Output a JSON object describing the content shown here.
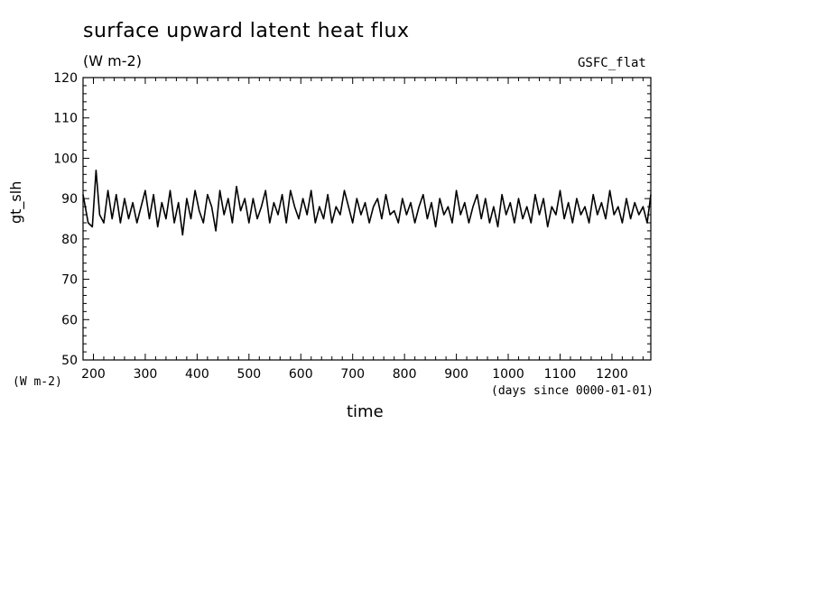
{
  "chart_data": {
    "type": "line",
    "title": "surface upward latent heat flux",
    "subtitle": "(W m-2)",
    "source_label": "GSFC_flat",
    "ylabel": "gt_slh",
    "yunit": "(W m-2)",
    "xlabel": "time",
    "xunit": "(days since 0000-01-01)",
    "xlim": [
      180,
      1275
    ],
    "ylim": [
      50,
      120
    ],
    "xticks": [
      200,
      300,
      400,
      500,
      600,
      700,
      800,
      900,
      1000,
      1100,
      1200
    ],
    "yticks": [
      50,
      60,
      70,
      80,
      90,
      100,
      110,
      120
    ],
    "grid": false,
    "line_color": "#000000",
    "series": [
      {
        "x": [
          180,
          190,
          198,
          205,
          212,
          220,
          228,
          236,
          244,
          252,
          260,
          268,
          276,
          284,
          292,
          300,
          308,
          316,
          324,
          332,
          340,
          348,
          356,
          364,
          372,
          380,
          388,
          396,
          404,
          412,
          420,
          428,
          436,
          444,
          452,
          460,
          468,
          476,
          484,
          492,
          500,
          508,
          516,
          524,
          532,
          540,
          548,
          556,
          564,
          572,
          580,
          588,
          596,
          604,
          612,
          620,
          628,
          636,
          644,
          652,
          660,
          668,
          676,
          684,
          692,
          700,
          708,
          716,
          724,
          732,
          740,
          748,
          756,
          764,
          772,
          780,
          788,
          796,
          804,
          812,
          820,
          828,
          836,
          844,
          852,
          860,
          868,
          876,
          884,
          892,
          900,
          908,
          916,
          924,
          932,
          940,
          948,
          956,
          964,
          972,
          980,
          988,
          996,
          1004,
          1012,
          1020,
          1028,
          1036,
          1044,
          1052,
          1060,
          1068,
          1076,
          1084,
          1092,
          1100,
          1108,
          1116,
          1124,
          1132,
          1140,
          1148,
          1156,
          1164,
          1172,
          1180,
          1188,
          1196,
          1204,
          1212,
          1220,
          1228,
          1236,
          1244,
          1252,
          1260,
          1268,
          1275
        ],
        "y": [
          91,
          84,
          83,
          97,
          86,
          84,
          92,
          85,
          91,
          84,
          90,
          85,
          89,
          84,
          88,
          92,
          85,
          91,
          83,
          89,
          85,
          92,
          84,
          89,
          81,
          90,
          85,
          92,
          87,
          84,
          91,
          88,
          82,
          92,
          86,
          90,
          84,
          93,
          87,
          90,
          84,
          90,
          85,
          88,
          92,
          84,
          89,
          86,
          91,
          84,
          92,
          88,
          85,
          90,
          86,
          92,
          84,
          88,
          85,
          91,
          84,
          88,
          86,
          92,
          88,
          84,
          90,
          86,
          89,
          84,
          88,
          90,
          85,
          91,
          86,
          87,
          84,
          90,
          86,
          89,
          84,
          88,
          91,
          85,
          89,
          83,
          90,
          86,
          88,
          84,
          92,
          86,
          89,
          84,
          88,
          91,
          85,
          90,
          84,
          88,
          83,
          91,
          86,
          89,
          84,
          90,
          85,
          88,
          84,
          91,
          86,
          90,
          83,
          88,
          86,
          92,
          85,
          89,
          84,
          90,
          86,
          88,
          84,
          91,
          86,
          89,
          85,
          92,
          86,
          88,
          84,
          90,
          85,
          89,
          86,
          88,
          84,
          91
        ]
      }
    ]
  }
}
